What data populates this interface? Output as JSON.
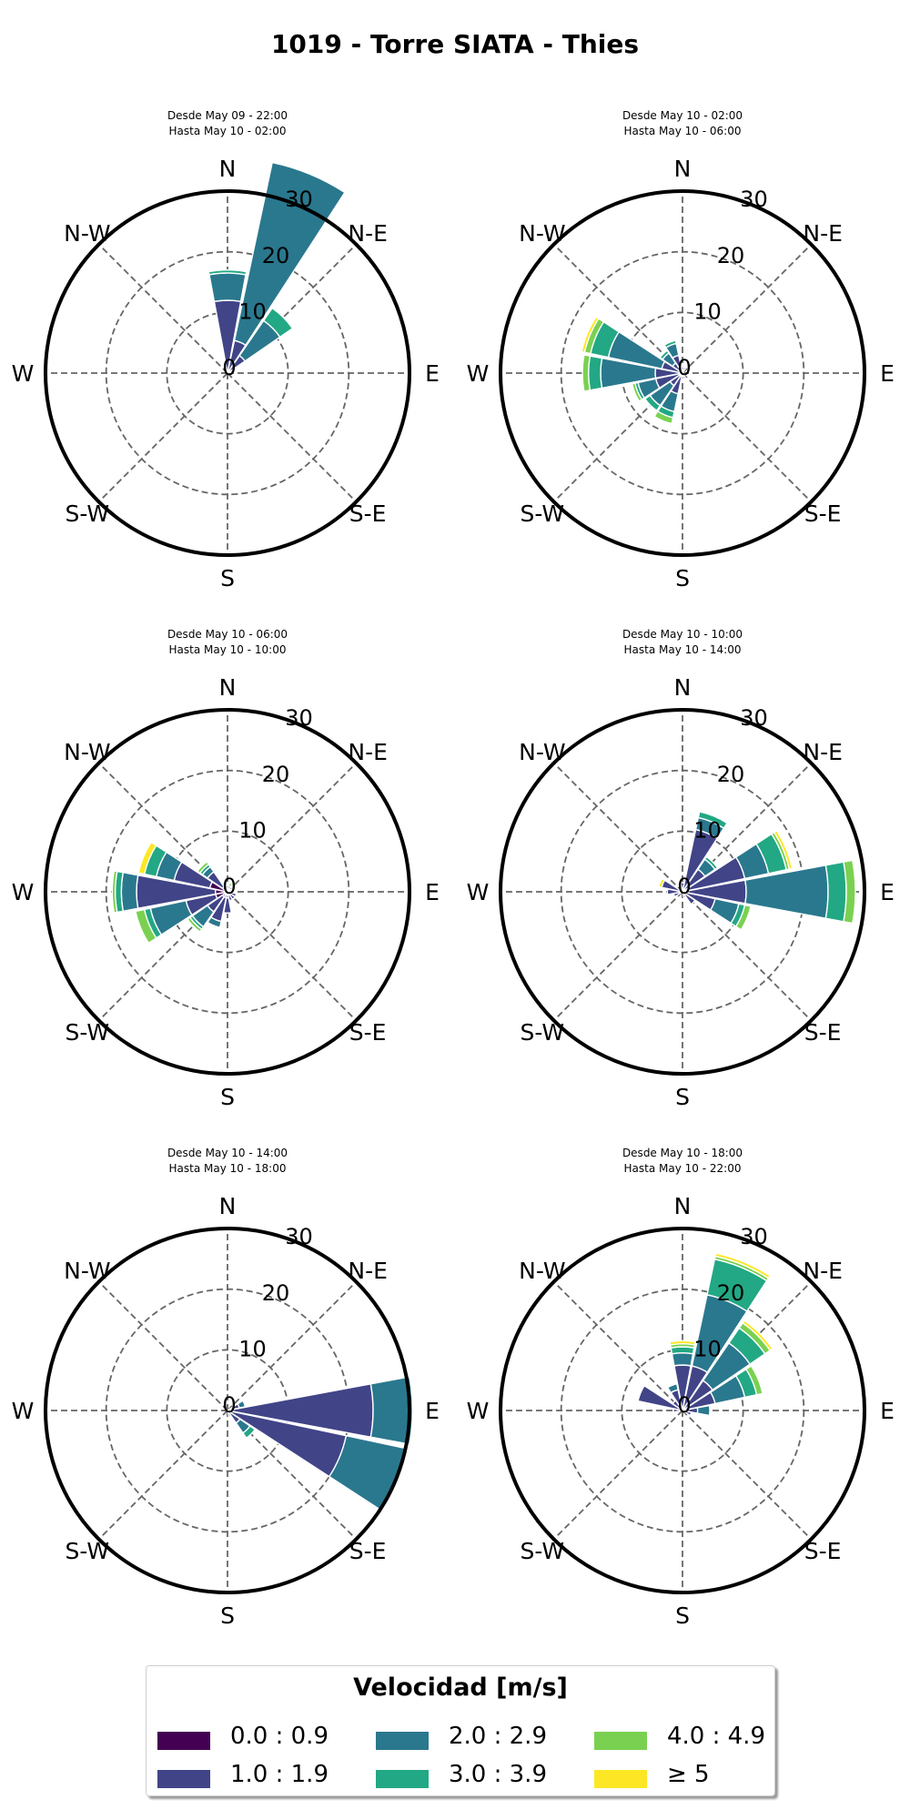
{
  "title": "1019 - Torre SIATA - Thies",
  "compass_labels": [
    "N",
    "N-E",
    "E",
    "S-E",
    "S",
    "S-W",
    "W",
    "N-W"
  ],
  "legend": {
    "title": "Velocidad [m/s]",
    "bins": [
      {
        "label": "0.0 : 0.9",
        "color": "#440154"
      },
      {
        "label": "1.0 : 1.9",
        "color": "#414487"
      },
      {
        "label": "2.0 : 2.9",
        "color": "#2a788e"
      },
      {
        "label": "3.0 : 3.9",
        "color": "#22a884"
      },
      {
        "label": "4.0 : 4.9",
        "color": "#7ad151"
      },
      {
        "label": "≥  5",
        "color": "#fde725"
      }
    ]
  },
  "chart_data": [
    {
      "type": "windrose",
      "subtitle": [
        "Desde May 09 - 22:00",
        "Hasta May 10 - 02:00"
      ],
      "radial_ticks": [
        0,
        10,
        20,
        30
      ],
      "rmax": 30,
      "sectors": [
        {
          "dir": 0,
          "values": [
            0.5,
            11.5,
            4.5,
            0.5,
            0,
            0
          ]
        },
        {
          "dir": 22.5,
          "values": [
            0.5,
            5,
            30,
            0,
            0,
            0
          ]
        },
        {
          "dir": 45,
          "values": [
            0.5,
            3,
            7,
            2.5,
            0,
            0
          ]
        },
        {
          "dir": 67.5,
          "values": [
            0,
            1,
            0,
            0,
            0,
            0
          ]
        }
      ]
    },
    {
      "type": "windrose",
      "subtitle": [
        "Desde May 10 - 02:00",
        "Hasta May 10 - 06:00"
      ],
      "radial_ticks": [
        0,
        10,
        20,
        30
      ],
      "rmax": 30,
      "sectors": [
        {
          "dir": 337.5,
          "values": [
            0,
            3,
            2,
            0.5,
            0,
            0
          ]
        },
        {
          "dir": 315,
          "values": [
            0,
            2,
            2,
            0.5,
            0,
            0
          ]
        },
        {
          "dir": 292.5,
          "values": [
            0.5,
            3,
            9,
            3,
            1,
            0.5
          ]
        },
        {
          "dir": 270,
          "values": [
            0.5,
            4,
            9,
            2,
            1,
            0
          ]
        },
        {
          "dir": 247.5,
          "values": [
            0.5,
            4,
            3,
            0.5,
            0.5,
            0
          ]
        },
        {
          "dir": 225,
          "values": [
            0.5,
            2,
            4,
            1,
            0,
            0
          ]
        },
        {
          "dir": 202.5,
          "values": [
            0.5,
            3,
            3,
            1,
            1,
            0
          ]
        },
        {
          "dir": 180,
          "values": [
            0,
            1,
            0,
            0,
            0,
            0
          ]
        },
        {
          "dir": 0,
          "values": [
            0,
            1,
            0,
            0,
            0,
            0
          ]
        },
        {
          "dir": 22.5,
          "values": [
            0,
            1,
            0,
            0,
            0,
            0
          ]
        },
        {
          "dir": 112.5,
          "values": [
            0,
            0.5,
            0,
            0,
            0,
            0
          ]
        },
        {
          "dir": 157.5,
          "values": [
            0,
            1,
            0,
            0,
            0,
            0
          ]
        }
      ]
    },
    {
      "type": "windrose",
      "subtitle": [
        "Desde May 10 - 06:00",
        "Hasta May 10 - 10:00"
      ],
      "radial_ticks": [
        0,
        10,
        20,
        30
      ],
      "rmax": 30,
      "sectors": [
        {
          "dir": 270,
          "values": [
            2,
            13,
            2.5,
            1,
            0.5,
            0
          ]
        },
        {
          "dir": 292.5,
          "values": [
            3,
            6,
            3,
            2,
            0,
            1
          ]
        },
        {
          "dir": 247.5,
          "values": [
            2,
            5,
            6,
            1,
            1.5,
            0
          ]
        },
        {
          "dir": 315,
          "values": [
            1,
            3,
            1,
            0.5,
            0.5,
            0
          ]
        },
        {
          "dir": 225,
          "values": [
            1,
            3,
            3,
            0.5,
            0.5,
            0
          ]
        },
        {
          "dir": 202.5,
          "values": [
            1,
            4,
            1,
            0,
            0,
            0
          ]
        },
        {
          "dir": 180,
          "values": [
            1,
            2.5,
            0,
            0,
            0,
            0
          ]
        },
        {
          "dir": 157.5,
          "values": [
            0.5,
            1,
            0,
            0,
            0,
            0
          ]
        },
        {
          "dir": 337.5,
          "values": [
            0.5,
            1,
            0,
            0,
            0,
            0
          ]
        },
        {
          "dir": 0,
          "values": [
            0.5,
            0.5,
            0,
            0,
            0,
            0
          ]
        },
        {
          "dir": 22.5,
          "values": [
            0.5,
            0.5,
            0,
            0,
            0.5,
            0
          ]
        },
        {
          "dir": 45,
          "values": [
            0.5,
            0.5,
            0,
            0,
            0,
            0
          ]
        },
        {
          "dir": 90,
          "values": [
            0.5,
            0.5,
            0,
            0,
            0,
            0
          ]
        },
        {
          "dir": 112.5,
          "values": [
            0.5,
            1,
            0,
            0,
            0,
            0
          ]
        },
        {
          "dir": 135,
          "values": [
            0.5,
            1,
            0,
            0,
            0,
            0
          ]
        }
      ]
    },
    {
      "type": "windrose",
      "subtitle": [
        "Desde May 10 - 10:00",
        "Hasta May 10 - 14:00"
      ],
      "radial_ticks": [
        0,
        10,
        20,
        30
      ],
      "rmax": 30,
      "sectors": [
        {
          "dir": 90,
          "values": [
            0.5,
            10,
            13.5,
            3,
            1.5,
            0
          ]
        },
        {
          "dir": 67.5,
          "values": [
            0.5,
            10,
            4,
            3,
            0.5,
            0.5
          ]
        },
        {
          "dir": 112.5,
          "values": [
            0.5,
            5,
            4,
            1,
            1,
            0
          ]
        },
        {
          "dir": 22.5,
          "values": [
            0.5,
            10,
            2,
            1,
            0,
            0
          ]
        },
        {
          "dir": 45,
          "values": [
            0.5,
            4,
            2,
            0.5,
            0,
            0
          ]
        },
        {
          "dir": 135,
          "values": [
            0.5,
            2,
            0,
            0,
            0,
            0
          ]
        },
        {
          "dir": 292.5,
          "values": [
            0.5,
            3,
            0,
            0,
            0,
            0.5
          ]
        },
        {
          "dir": 270,
          "values": [
            0.5,
            2,
            0,
            0,
            0,
            0
          ]
        },
        {
          "dir": 247.5,
          "values": [
            0.5,
            1,
            0,
            0,
            0,
            0
          ]
        },
        {
          "dir": 0,
          "values": [
            0.5,
            1,
            0,
            0,
            0,
            0
          ]
        },
        {
          "dir": 337.5,
          "values": [
            0.5,
            1,
            0,
            0,
            0,
            0
          ]
        },
        {
          "dir": 157.5,
          "values": [
            0,
            1,
            0,
            0,
            0,
            0
          ]
        }
      ]
    },
    {
      "type": "windrose",
      "subtitle": [
        "Desde May 10 - 14:00",
        "Hasta May 10 - 18:00"
      ],
      "radial_ticks": [
        0,
        10,
        20,
        30
      ],
      "rmax": 30,
      "sectors": [
        {
          "dir": 90,
          "values": [
            0.5,
            23.5,
            6.5,
            0,
            0,
            0
          ]
        },
        {
          "dir": 112.5,
          "values": [
            0.5,
            19.5,
            10,
            0,
            0,
            0
          ]
        },
        {
          "dir": 135,
          "values": [
            0.5,
            2,
            2,
            1,
            0,
            0
          ]
        },
        {
          "dir": 67.5,
          "values": [
            0.5,
            1.5,
            1,
            0,
            0,
            0
          ]
        },
        {
          "dir": 157.5,
          "values": [
            0,
            1,
            0,
            0,
            0,
            0
          ]
        }
      ]
    },
    {
      "type": "windrose",
      "subtitle": [
        "Desde May 10 - 18:00",
        "Hasta May 10 - 22:00"
      ],
      "radial_ticks": [
        0,
        10,
        20,
        30
      ],
      "rmax": 30,
      "sectors": [
        {
          "dir": 22.5,
          "values": [
            0.5,
            7,
            12,
            6,
            0.5,
            0.5
          ]
        },
        {
          "dir": 45,
          "values": [
            0.5,
            5.5,
            7.5,
            3,
            1,
            0.5
          ]
        },
        {
          "dir": 67.5,
          "values": [
            0.5,
            5,
            5,
            2,
            1,
            0
          ]
        },
        {
          "dir": 0,
          "values": [
            0.5,
            7,
            2,
            1,
            0.5,
            0.5
          ]
        },
        {
          "dir": 337.5,
          "values": [
            0.5,
            3,
            1,
            0,
            0,
            0
          ]
        },
        {
          "dir": 315,
          "values": [
            0.5,
            1.5,
            0,
            0,
            0,
            0
          ]
        },
        {
          "dir": 292.5,
          "values": [
            0.5,
            7,
            0,
            0,
            0,
            0
          ]
        },
        {
          "dir": 270,
          "values": [
            0.5,
            1,
            0,
            0,
            0,
            0
          ]
        },
        {
          "dir": 90,
          "values": [
            0.5,
            2,
            2,
            0,
            0,
            0
          ]
        },
        {
          "dir": 112.5,
          "values": [
            0.5,
            1,
            0,
            0,
            0,
            0
          ]
        }
      ]
    }
  ]
}
